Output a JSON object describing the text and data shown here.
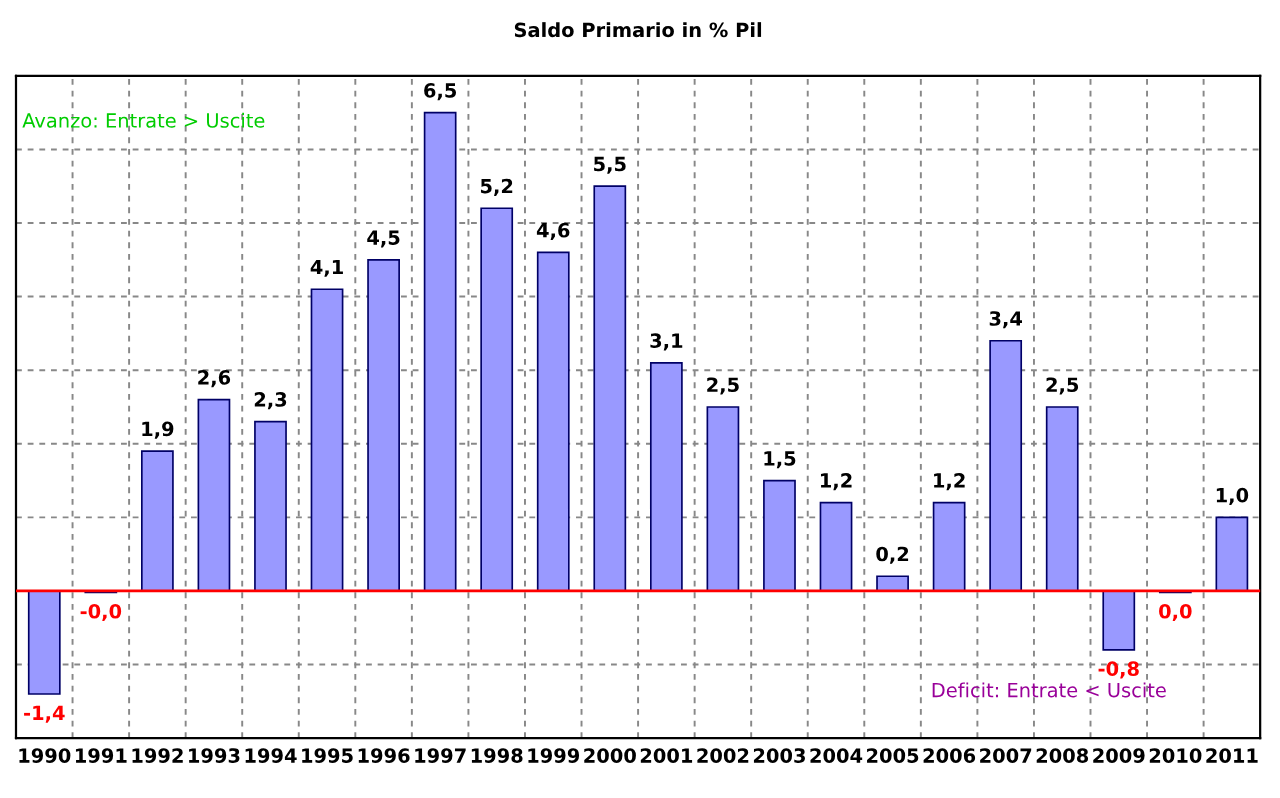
{
  "chart_data": {
    "type": "bar",
    "title": "Saldo Primario in % Pil",
    "categories": [
      "1990",
      "1991",
      "1992",
      "1993",
      "1994",
      "1995",
      "1996",
      "1997",
      "1998",
      "1999",
      "2000",
      "2001",
      "2002",
      "2003",
      "2004",
      "2005",
      "2006",
      "2007",
      "2008",
      "2009",
      "2010",
      "2011"
    ],
    "values": [
      -1.4,
      -0.02,
      1.9,
      2.6,
      2.3,
      4.1,
      4.5,
      6.5,
      5.2,
      4.6,
      5.5,
      3.1,
      2.5,
      1.5,
      1.2,
      0.2,
      1.2,
      3.4,
      2.5,
      -0.8,
      -0.02,
      1.0
    ],
    "value_labels": [
      "-1,4",
      "-0,0",
      "1,9",
      "2,6",
      "2,3",
      "4,1",
      "4,5",
      "6,5",
      "5,2",
      "4,6",
      "5,5",
      "3,1",
      "2,5",
      "1,5",
      "1,2",
      "0,2",
      "1,2",
      "3,4",
      "2,5",
      "-0,8",
      "0,0",
      "1,0"
    ],
    "color": "#9999ff",
    "ylim": [
      -2,
      7
    ],
    "yticks": [
      {
        "value": -2,
        "label": null
      },
      {
        "value": -1,
        "label": null
      },
      {
        "value": 0,
        "label": null
      },
      {
        "value": 1,
        "label": null
      },
      {
        "value": 2,
        "label": null
      },
      {
        "value": 3,
        "label": null
      },
      {
        "value": 4,
        "label": null
      },
      {
        "value": 5,
        "label": null
      },
      {
        "value": 6,
        "label": null
      },
      {
        "value": 7,
        "label": null
      }
    ],
    "tick_labels": "x",
    "grid": true,
    "ref_lines": [
      {
        "axis": "y",
        "value": 0,
        "label": null,
        "color": "#ff0000"
      }
    ],
    "annotations": [
      "Avanzo: Entrate > Uscite",
      "Deficit: Entrate < Uscite"
    ]
  }
}
